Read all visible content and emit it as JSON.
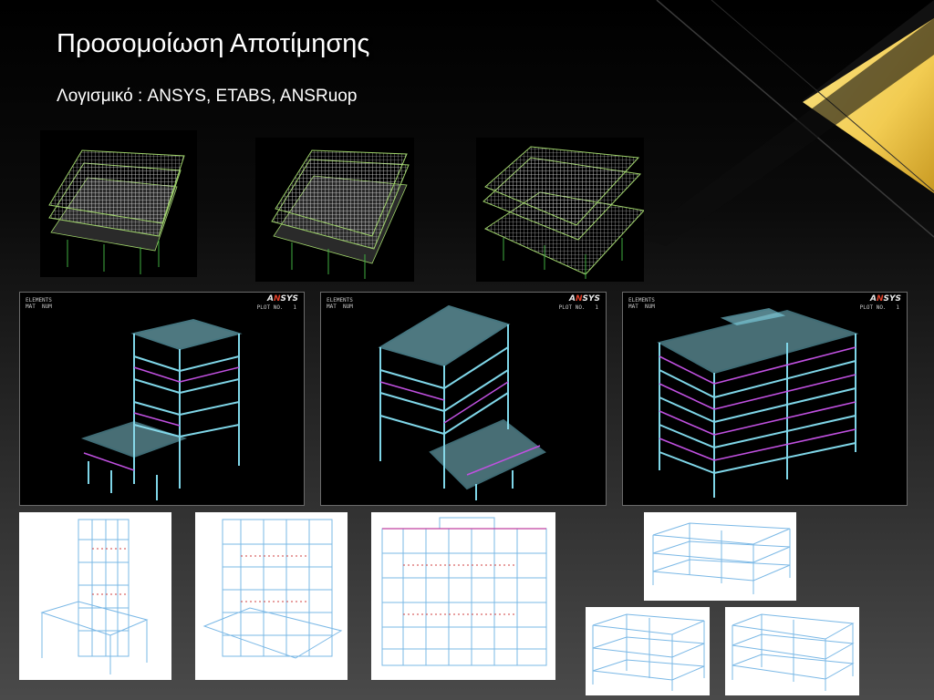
{
  "slide": {
    "title": "Προσομοίωση Αποτίμησης",
    "subtitle": "Λογισμικό : ANSYS, ETABS, ANSRuop",
    "colors": {
      "accent_gold": "#f2cc52",
      "background": "#000000"
    }
  },
  "ansys_panels": [
    {
      "label": "ELEMENTS",
      "mat": "MAT  NUM",
      "plot": "PLOT NO.   1",
      "logo_a": "A",
      "logo_n": "N",
      "logo_rest": "SYS"
    },
    {
      "label": "ELEMENTS",
      "mat": "MAT  NUM",
      "plot": "PLOT NO.   1",
      "logo_a": "A",
      "logo_n": "N",
      "logo_rest": "SYS"
    },
    {
      "label": "ELEMENTS",
      "mat": "MAT  NUM",
      "plot": "PLOT NO.   1",
      "logo_a": "A",
      "logo_n": "N",
      "logo_rest": "SYS"
    }
  ]
}
